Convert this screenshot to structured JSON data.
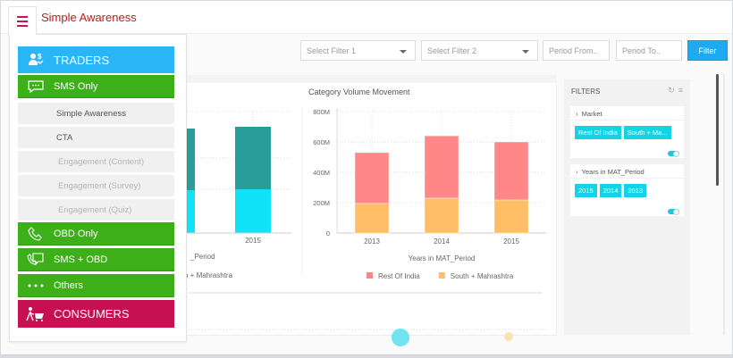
{
  "app": {
    "title": "Simple Awareness",
    "menu_icon": "hamburger-icon"
  },
  "menu": {
    "items": [
      {
        "label": "TRADERS",
        "type": "section",
        "icon": "traders-icon",
        "color": "#29b6f6"
      },
      {
        "label": "SMS Only",
        "type": "group",
        "icon": "chat-bubble-icon",
        "color": "#3caf19"
      },
      {
        "label": "Simple Awareness",
        "type": "sub",
        "state": "active"
      },
      {
        "label": "CTA",
        "type": "sub",
        "state": "active"
      },
      {
        "label": "Engagement (Content)",
        "type": "sub",
        "state": "disabled"
      },
      {
        "label": "Engagement (Survey)",
        "type": "sub",
        "state": "disabled"
      },
      {
        "label": "Engagement (Quiz)",
        "type": "sub",
        "state": "disabled"
      },
      {
        "label": "OBD Only",
        "type": "group",
        "icon": "phone-icon",
        "color": "#3caf19"
      },
      {
        "label": "SMS + OBD",
        "type": "group",
        "icon": "phone-chat-icon",
        "color": "#3caf19"
      },
      {
        "label": "Others",
        "type": "group",
        "icon": "more-dots-icon",
        "color": "#3caf19"
      },
      {
        "label": "CONSUMERS",
        "type": "section",
        "icon": "shopping-cart-person-icon",
        "color": "#c6104f"
      }
    ]
  },
  "toolbar": {
    "filter1_placeholder": "Select Filter 1",
    "filter2_placeholder": "Select Filter 2",
    "period_from_placeholder": "Period From..",
    "period_to_placeholder": "Period To..",
    "filter_button": "Filter",
    "accent": "#1eaaf1"
  },
  "left_chart_partial": {
    "visible_x_label": "2015",
    "visible_axis_title": "_Period",
    "visible_legend_text": "h + Mahrashtra"
  },
  "chart_data": {
    "type": "bar",
    "stacked": true,
    "title": "Category Volume Movement",
    "xlabel": "Years in MAT_Period",
    "ylabel": "",
    "categories": [
      "2013",
      "2014",
      "2015"
    ],
    "ylim": [
      0,
      800000000
    ],
    "yticks": [
      0,
      200000000,
      400000000,
      600000000,
      800000000
    ],
    "ytick_labels": [
      "0",
      "200M",
      "400M",
      "600M",
      "800M"
    ],
    "grid": true,
    "legend": "bottom",
    "series": [
      {
        "name": "South + Mahrashtra",
        "color": "#ffbe66",
        "values": [
          195000000,
          230000000,
          218000000
        ]
      },
      {
        "name": "Rest Of India",
        "color": "#ff8787",
        "values": [
          335000000,
          410000000,
          382000000
        ]
      }
    ],
    "legend_order": [
      "Rest Of India",
      "South + Mahrashtra"
    ]
  },
  "filters_panel": {
    "title": "FILTERS",
    "reset_icon": "refresh-icon",
    "menu_icon": "list-icon",
    "cards": [
      {
        "header": "Market",
        "chips": [
          "Rest Of India",
          "South + Ma..."
        ]
      },
      {
        "header": "Years in MAT_Period",
        "chips": [
          "2015",
          "2014",
          "2013"
        ]
      }
    ]
  }
}
